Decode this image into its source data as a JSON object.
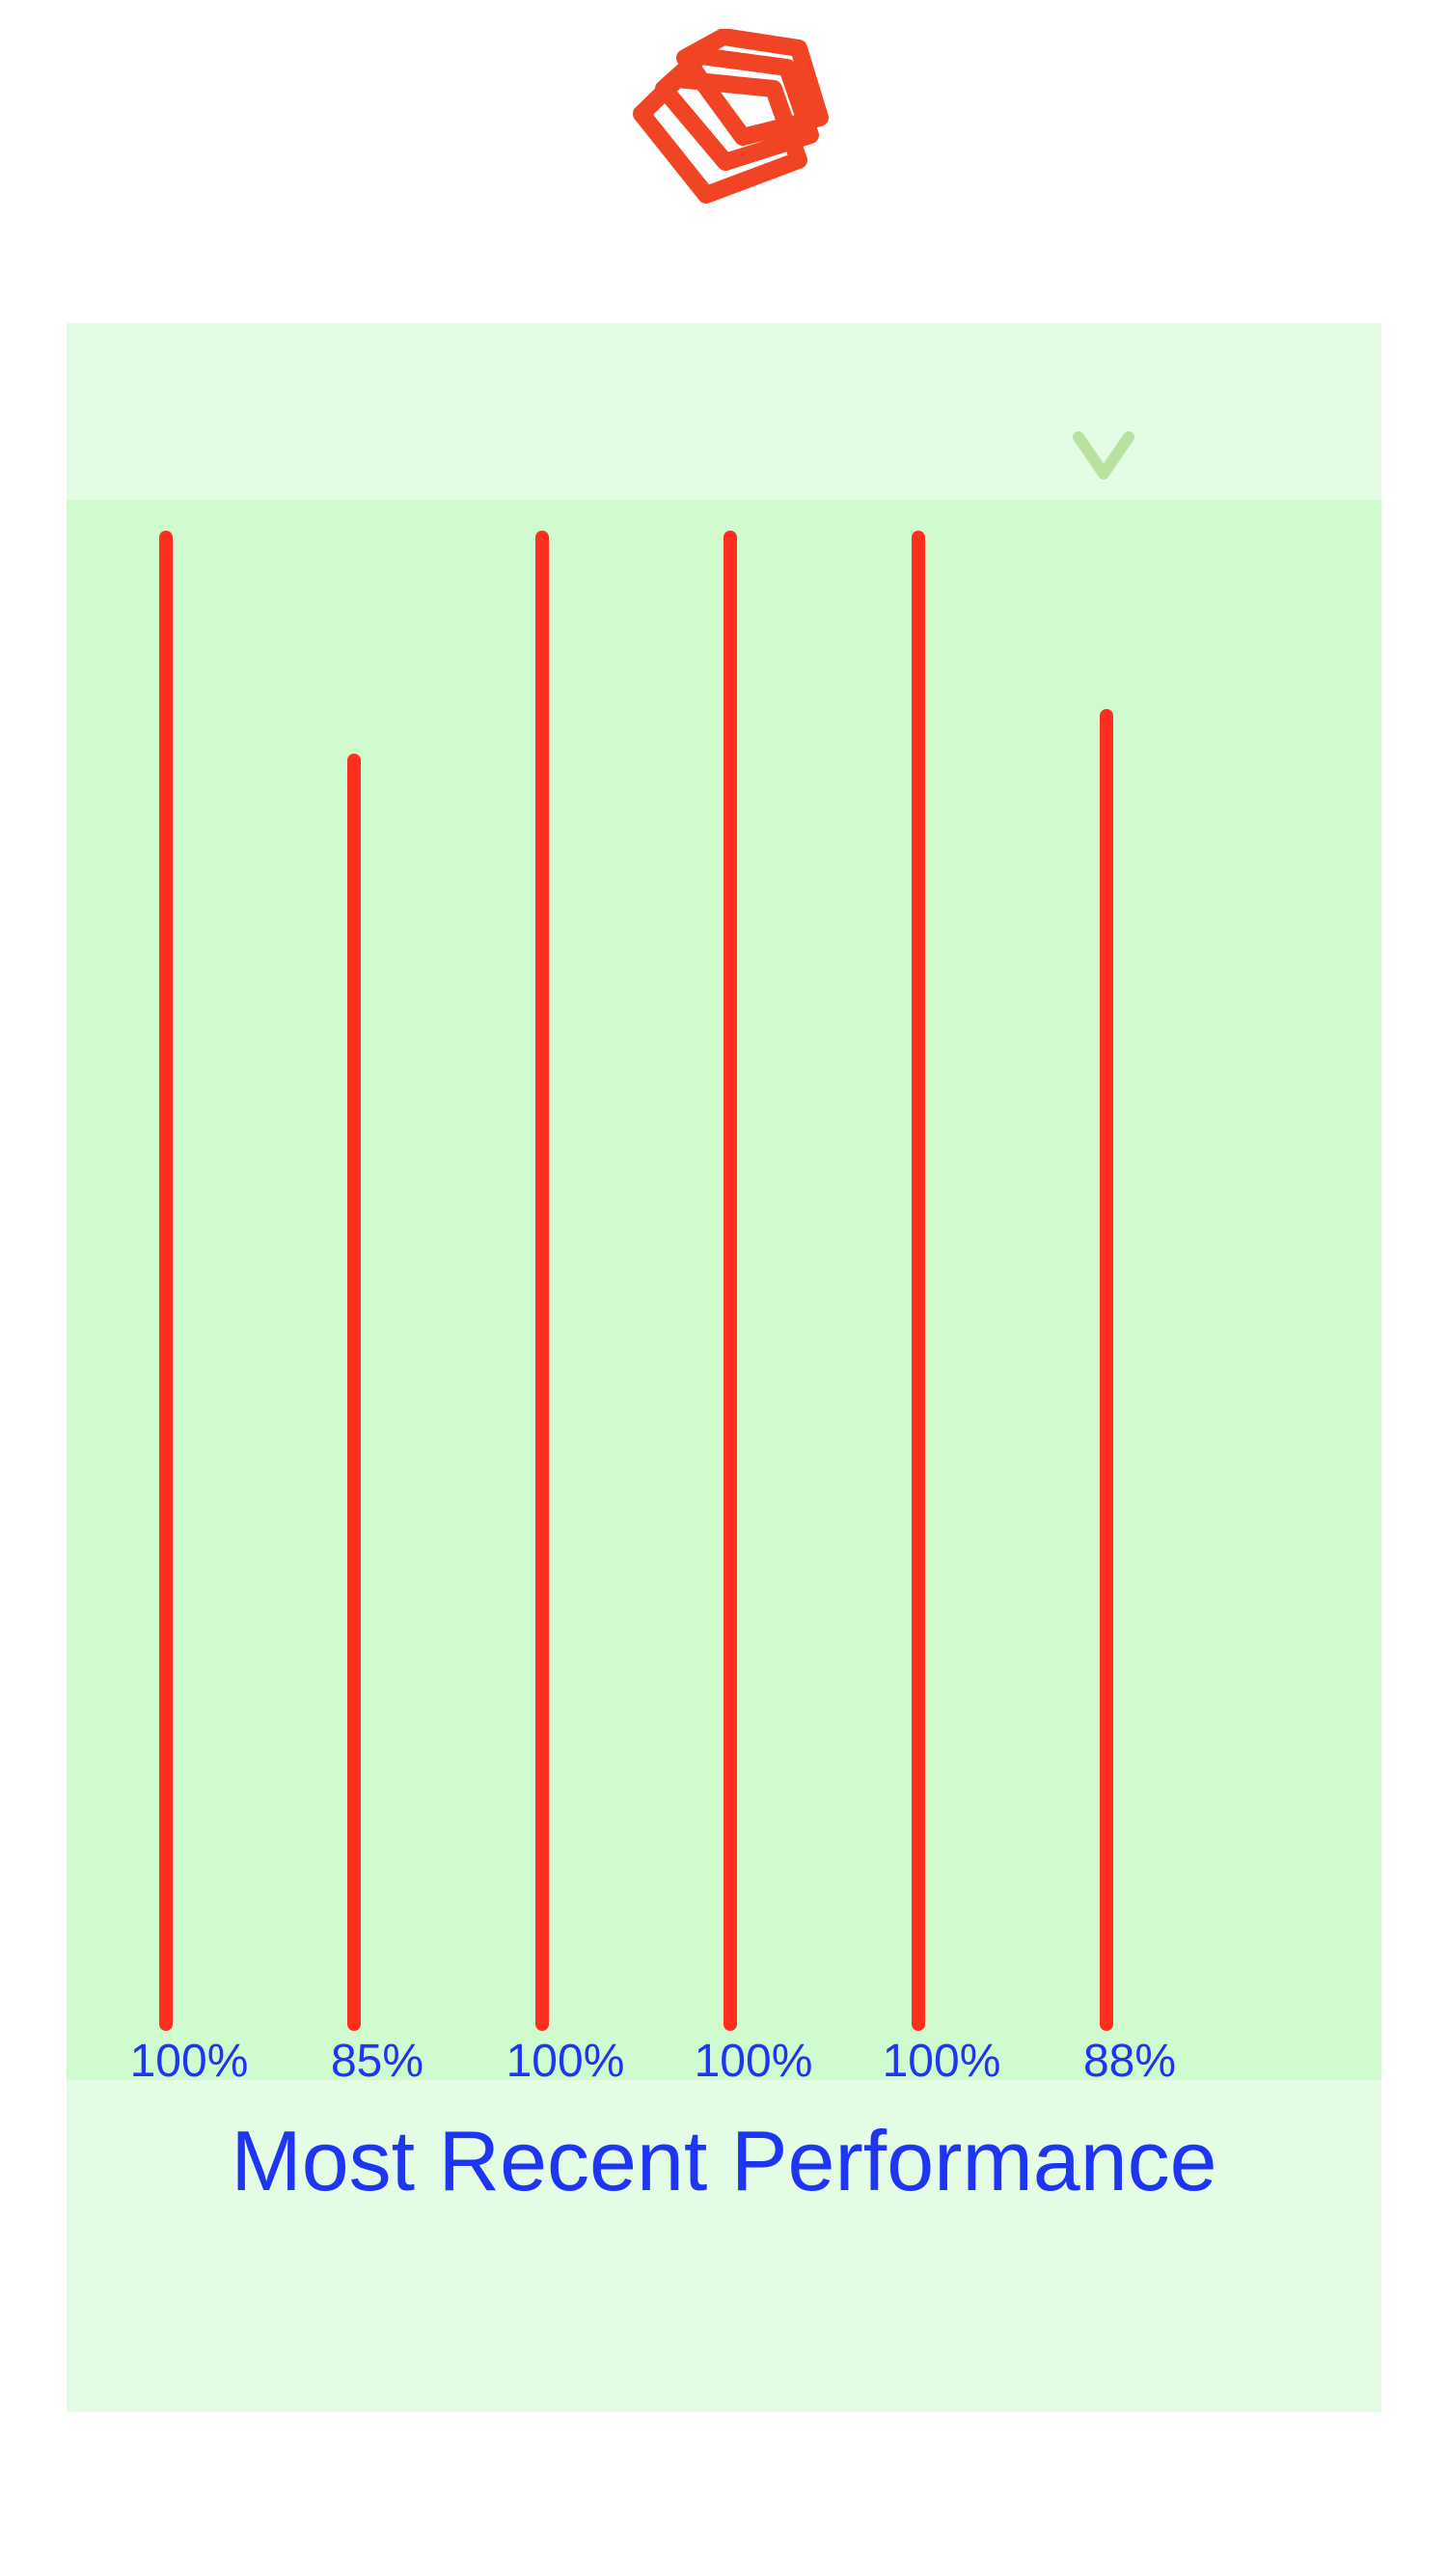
{
  "colors": {
    "accent": "#f04424",
    "bar": "#ff2f1f",
    "label": "#1f35f4",
    "card_bg": "#e3fce3",
    "plot_bg": "#cffbcf",
    "chevron": "#b9e2a1"
  },
  "logo": {
    "icon": "stacked-layers-icon"
  },
  "toggle": {
    "icon": "chevron-down-icon"
  },
  "chart_data": {
    "type": "bar",
    "title": "Most Recent Performance",
    "xlabel": "",
    "ylabel": "",
    "ylim": [
      0,
      100
    ],
    "grid": false,
    "categories": [
      "100%",
      "85%",
      "100%",
      "100%",
      "100%",
      "88%"
    ],
    "values": [
      100,
      85,
      100,
      100,
      100,
      88
    ]
  }
}
